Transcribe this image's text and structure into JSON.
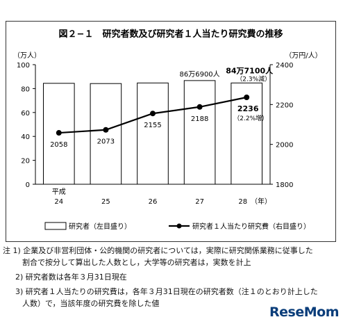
{
  "chart_data": {
    "type": "bar",
    "title": "図２−１　研究者数及び研究者１人当たり研究費の推移",
    "categories": [
      "平成\n24",
      "25",
      "26",
      "27",
      "28（年）"
    ],
    "category_labels": [
      {
        "line1": "平成",
        "line2": "24"
      },
      {
        "line1": "",
        "line2": "25"
      },
      {
        "line1": "",
        "line2": "26"
      },
      {
        "line1": "",
        "line2": "27"
      },
      {
        "line1": "",
        "line2": "28　（年）"
      }
    ],
    "series": [
      {
        "name": "研究者（左目盛り）",
        "type": "bar",
        "axis": "left",
        "values": [
          84.4,
          84.2,
          84.7,
          86.7,
          84.7
        ]
      },
      {
        "name": "研究者１人当たり研究費（右目盛り）",
        "type": "line",
        "axis": "right",
        "values": [
          2058,
          2073,
          2155,
          2188,
          2236
        ]
      }
    ],
    "left_axis": {
      "unit": "（万人）",
      "min": 0,
      "max": 100,
      "ticks": [
        0,
        20,
        40,
        60,
        80,
        100
      ]
    },
    "right_axis": {
      "unit": "（万円/人）",
      "min": 1800,
      "max": 2400,
      "ticks": [
        1800,
        2000,
        2200,
        2400
      ]
    },
    "line_labels": [
      "2058",
      "2073",
      "2155",
      "2188",
      "2236"
    ],
    "annotations": {
      "bar_27": "86万6900人",
      "bar_28": "84万7100人",
      "bar_28_change": "（2.3%減）",
      "line_28": "2236",
      "line_28_change": "（2.2%増）"
    },
    "legend_position": "bottom"
  },
  "notes": [
    {
      "prefix": "注 1)",
      "line1": "企業及び非営利団体・公的機関の研究者については，実際に研究関係業務に従事した",
      "line2": "割合で按分して算出した人数とし，大学等の研究者は，実数を計上"
    },
    {
      "prefix": "2)",
      "line1": "研究者数は各年３月31日現在",
      "line2": ""
    },
    {
      "prefix": "3)",
      "line1": "研究者１人当たりの研究費は，各年３月31日現在の研究者数（注１のとおり計上した",
      "line2": "人数）で，当該年度の研究費を除した値"
    }
  ],
  "logo_text": "ReseMom"
}
